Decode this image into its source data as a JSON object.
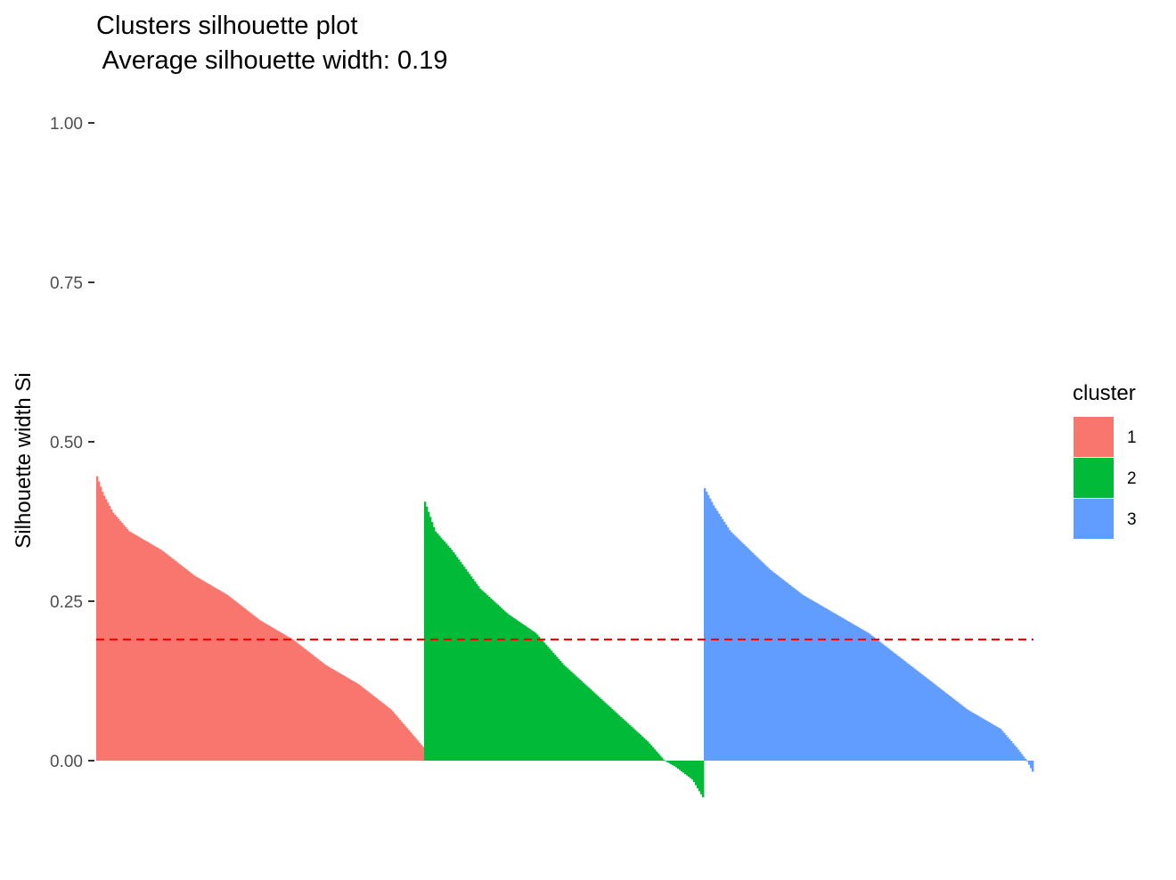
{
  "chart_data": {
    "type": "bar",
    "title": "Clusters silhouette plot",
    "subtitle": " Average silhouette width: 0.19",
    "xlabel": "",
    "ylabel": "Silhouette width Si",
    "ylim": [
      -0.06,
      1.0
    ],
    "yticks": [
      "0.00",
      "0.25",
      "0.50",
      "0.75",
      "1.00"
    ],
    "ytick_values": [
      0,
      0.25,
      0.5,
      0.75,
      1.0
    ],
    "grid": false,
    "average_silhouette_width": 0.19,
    "average_line_color": "#ff0000",
    "legend": {
      "title": "cluster",
      "position": "right"
    },
    "series": [
      {
        "name": "1",
        "color": "#f8766d",
        "profile": [
          [
            0,
            0.45
          ],
          [
            0.02,
            0.42
          ],
          [
            0.05,
            0.39
          ],
          [
            0.1,
            0.36
          ],
          [
            0.2,
            0.33
          ],
          [
            0.3,
            0.29
          ],
          [
            0.4,
            0.26
          ],
          [
            0.5,
            0.22
          ],
          [
            0.6,
            0.19
          ],
          [
            0.7,
            0.15
          ],
          [
            0.8,
            0.12
          ],
          [
            0.9,
            0.08
          ],
          [
            0.95,
            0.05
          ],
          [
            1.0,
            0.02
          ]
        ]
      },
      {
        "name": "2",
        "color": "#00ba38",
        "profile": [
          [
            0,
            0.41
          ],
          [
            0.04,
            0.36
          ],
          [
            0.1,
            0.33
          ],
          [
            0.2,
            0.27
          ],
          [
            0.3,
            0.23
          ],
          [
            0.4,
            0.2
          ],
          [
            0.5,
            0.15
          ],
          [
            0.6,
            0.11
          ],
          [
            0.7,
            0.07
          ],
          [
            0.8,
            0.03
          ],
          [
            0.86,
            0.0
          ],
          [
            0.9,
            -0.01
          ],
          [
            0.96,
            -0.03
          ],
          [
            1.0,
            -0.06
          ]
        ]
      },
      {
        "name": "3",
        "color": "#619cff",
        "profile": [
          [
            0,
            0.43
          ],
          [
            0.03,
            0.4
          ],
          [
            0.08,
            0.36
          ],
          [
            0.2,
            0.3
          ],
          [
            0.3,
            0.26
          ],
          [
            0.4,
            0.23
          ],
          [
            0.5,
            0.2
          ],
          [
            0.6,
            0.16
          ],
          [
            0.7,
            0.12
          ],
          [
            0.8,
            0.08
          ],
          [
            0.9,
            0.05
          ],
          [
            0.95,
            0.02
          ],
          [
            0.98,
            0.0
          ],
          [
            1.0,
            -0.02
          ]
        ]
      }
    ]
  }
}
